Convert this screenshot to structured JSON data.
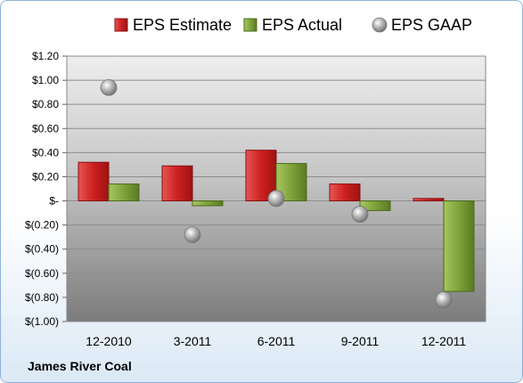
{
  "chart_data": {
    "type": "bar",
    "categories": [
      "12-2010",
      "3-2011",
      "6-2011",
      "9-2011",
      "12-2011"
    ],
    "series": [
      {
        "name": "EPS Estimate",
        "kind": "bar",
        "color": "#cc2222",
        "values": [
          0.32,
          0.29,
          0.42,
          0.14,
          0.02
        ]
      },
      {
        "name": "EPS Actual",
        "kind": "bar",
        "color": "#7ea33a",
        "values": [
          0.14,
          -0.04,
          0.31,
          -0.08,
          -0.75
        ]
      },
      {
        "name": "EPS GAAP",
        "kind": "marker",
        "color": "#a6a6a6",
        "values": [
          0.94,
          -0.28,
          0.02,
          -0.11,
          -0.82
        ]
      }
    ],
    "ylim": [
      -1.0,
      1.2
    ],
    "yticks": [
      1.2,
      1.0,
      0.8,
      0.6,
      0.4,
      0.2,
      0,
      -0.2,
      -0.4,
      -0.6,
      -0.8,
      -1.0
    ],
    "ytick_labels": [
      "$1.20",
      "$1.00",
      "$0.80",
      "$0.60",
      "$0.40",
      "$0.20",
      "$-",
      "$(0.20)",
      "$(0.40)",
      "$(0.60)",
      "$(0.80)",
      "$(1.00)"
    ],
    "grid": true,
    "legend_position": "top"
  },
  "footer": {
    "company": "James River Coal"
  }
}
